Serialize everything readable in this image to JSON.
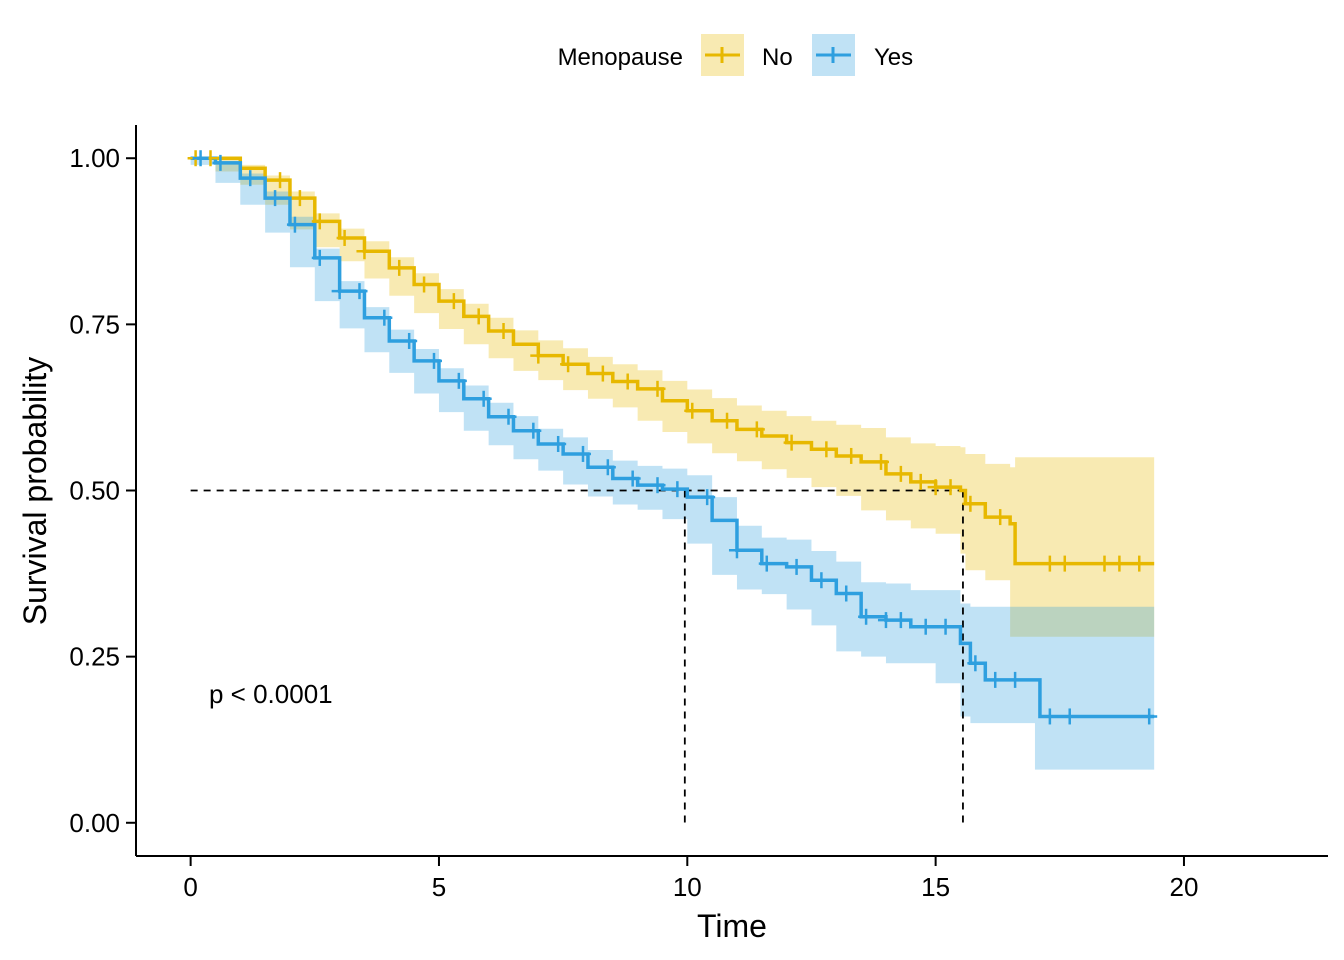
{
  "chart_data": {
    "type": "line",
    "subtype": "kaplan-meier",
    "title": "",
    "xlabel": "Time",
    "ylabel": "Survival probability",
    "xlim": [
      -1.1,
      22.9
    ],
    "ylim": [
      -0.05,
      1.05
    ],
    "xticks": [
      0,
      5,
      10,
      15,
      20
    ],
    "yticks": [
      0,
      0.25,
      0.5,
      0.75,
      1
    ],
    "xtick_labels": [
      "0",
      "5",
      "10",
      "15",
      "20"
    ],
    "ytick_labels": [
      "0.00",
      "0.25",
      "0.50",
      "0.75",
      "1.00"
    ],
    "grid": false,
    "legend": {
      "title": "Menopause",
      "position": "top"
    },
    "annotation": "p < 0.0001",
    "median_lines": {
      "y": 0.5,
      "x": [
        9.95,
        15.55
      ]
    },
    "series": [
      {
        "name": "No",
        "color": "#E7B800",
        "x": [
          0,
          0.5,
          1,
          1.5,
          2,
          2.5,
          3,
          3.5,
          4,
          4.5,
          5,
          5.5,
          6,
          6.5,
          7,
          7.5,
          8,
          8.5,
          9,
          9.5,
          10,
          10.5,
          11,
          11.5,
          12,
          12.5,
          13,
          13.5,
          14,
          14.5,
          15,
          15.5,
          15.6,
          16,
          16.5,
          16.6,
          17,
          18,
          19,
          19.4
        ],
        "y": [
          1.0,
          1.0,
          0.985,
          0.967,
          0.94,
          0.905,
          0.88,
          0.86,
          0.835,
          0.81,
          0.785,
          0.762,
          0.74,
          0.72,
          0.703,
          0.69,
          0.676,
          0.664,
          0.653,
          0.635,
          0.62,
          0.605,
          0.592,
          0.582,
          0.572,
          0.562,
          0.552,
          0.543,
          0.525,
          0.513,
          0.505,
          0.5,
          0.48,
          0.46,
          0.45,
          0.39,
          0.39,
          0.39,
          0.39,
          0.39
        ],
        "lower": [
          1.0,
          1.0,
          0.98,
          0.96,
          0.93,
          0.893,
          0.866,
          0.845,
          0.819,
          0.793,
          0.767,
          0.743,
          0.72,
          0.699,
          0.68,
          0.666,
          0.651,
          0.638,
          0.625,
          0.605,
          0.588,
          0.571,
          0.556,
          0.544,
          0.532,
          0.519,
          0.505,
          0.492,
          0.47,
          0.455,
          0.443,
          0.435,
          0.405,
          0.38,
          0.365,
          0.28,
          0.28,
          0.28,
          0.28,
          0.28
        ],
        "upper": [
          1.0,
          1.0,
          0.99,
          0.974,
          0.95,
          0.917,
          0.894,
          0.875,
          0.851,
          0.827,
          0.803,
          0.781,
          0.76,
          0.741,
          0.726,
          0.714,
          0.701,
          0.69,
          0.681,
          0.665,
          0.652,
          0.639,
          0.628,
          0.62,
          0.612,
          0.605,
          0.599,
          0.594,
          0.58,
          0.571,
          0.567,
          0.565,
          0.555,
          0.54,
          0.535,
          0.55,
          0.55,
          0.55,
          0.55,
          0.55
        ],
        "censor_x": [
          0.1,
          0.4,
          1.8,
          2.2,
          2.6,
          3.1,
          3.5,
          4.2,
          4.7,
          5.3,
          5.8,
          6.3,
          7.0,
          7.6,
          8.3,
          8.8,
          9.4,
          10.1,
          10.8,
          11.4,
          12.1,
          12.8,
          13.3,
          13.9,
          14.3,
          14.7,
          15.0,
          15.3,
          15.7,
          16.3,
          17.3,
          17.6,
          18.4,
          18.7,
          19.1
        ]
      },
      {
        "name": "Yes",
        "color": "#2E9FDF",
        "x": [
          0,
          0.5,
          1,
          1.5,
          2,
          2.5,
          3,
          3.5,
          4,
          4.5,
          5,
          5.5,
          6,
          6.5,
          7,
          7.5,
          8,
          8.5,
          9,
          9.5,
          10,
          10.5,
          11,
          11.5,
          12,
          12.5,
          13,
          13.5,
          14,
          14.5,
          15,
          15.5,
          15.7,
          16,
          17,
          17.1,
          19.4
        ],
        "y": [
          1.0,
          0.993,
          0.97,
          0.94,
          0.9,
          0.85,
          0.8,
          0.76,
          0.725,
          0.695,
          0.665,
          0.638,
          0.611,
          0.59,
          0.57,
          0.555,
          0.535,
          0.518,
          0.508,
          0.502,
          0.49,
          0.455,
          0.41,
          0.39,
          0.385,
          0.365,
          0.345,
          0.31,
          0.305,
          0.295,
          0.295,
          0.27,
          0.24,
          0.215,
          0.215,
          0.16,
          0.16
        ],
        "lower": [
          1.0,
          0.99,
          0.963,
          0.93,
          0.888,
          0.836,
          0.785,
          0.744,
          0.708,
          0.677,
          0.646,
          0.618,
          0.59,
          0.568,
          0.547,
          0.53,
          0.509,
          0.491,
          0.479,
          0.471,
          0.457,
          0.42,
          0.373,
          0.351,
          0.344,
          0.321,
          0.297,
          0.258,
          0.25,
          0.24,
          0.24,
          0.21,
          0.16,
          0.15,
          0.15,
          0.08,
          0.08
        ],
        "upper": [
          1.0,
          0.996,
          0.977,
          0.95,
          0.912,
          0.864,
          0.815,
          0.776,
          0.742,
          0.713,
          0.684,
          0.658,
          0.632,
          0.612,
          0.593,
          0.58,
          0.561,
          0.545,
          0.537,
          0.533,
          0.523,
          0.49,
          0.447,
          0.429,
          0.426,
          0.409,
          0.393,
          0.362,
          0.36,
          0.35,
          0.35,
          0.33,
          0.325,
          0.325,
          0.325,
          0.325,
          0.325
        ],
        "censor_x": [
          0.2,
          0.6,
          1.2,
          1.7,
          2.1,
          2.6,
          3.0,
          3.4,
          3.9,
          4.4,
          4.9,
          5.4,
          5.9,
          6.4,
          6.9,
          7.4,
          7.9,
          8.4,
          8.9,
          9.4,
          9.8,
          10.4,
          11.0,
          11.6,
          12.2,
          12.7,
          13.2,
          13.6,
          14.0,
          14.3,
          14.8,
          15.2,
          15.8,
          16.2,
          16.6,
          17.3,
          17.7,
          19.3
        ]
      }
    ]
  }
}
